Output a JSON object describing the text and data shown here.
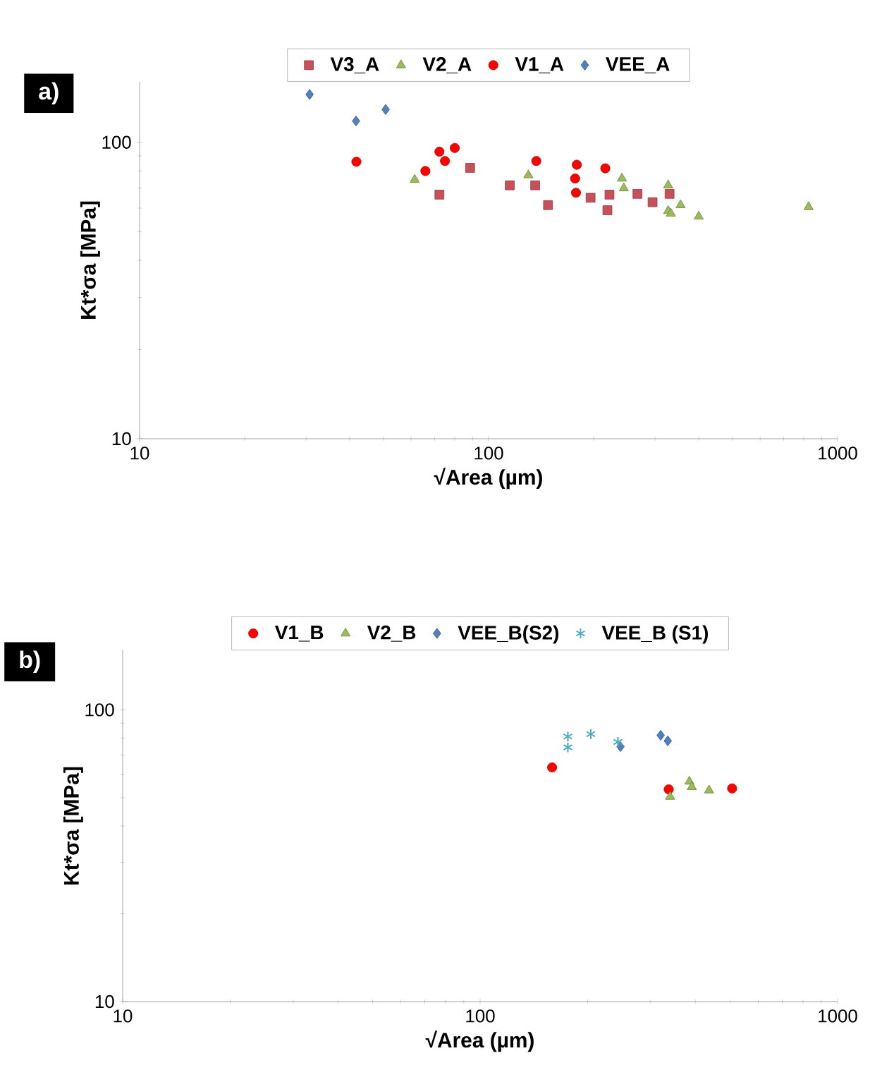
{
  "chart_data": [
    {
      "type": "scatter",
      "title": "a)",
      "xlabel": "√Area (µm)",
      "ylabel": "Kt*σa [MPa]",
      "log": "xy",
      "xlim": [
        10,
        1000
      ],
      "ylim": [
        10,
        160
      ],
      "xticks": [
        10,
        100,
        1000
      ],
      "yticks": [
        10,
        100
      ],
      "legend": "top",
      "grid": false,
      "series": [
        {
          "name": "V3_A",
          "color": "#c8505a",
          "marker": "square",
          "x": [
            72.3,
            88.5,
            115,
            136,
            148,
            196,
            219,
            222,
            267,
            295,
            330
          ],
          "values": [
            66.6,
            82,
            71.6,
            71.6,
            61.4,
            65,
            59,
            66.6,
            67,
            62.8,
            67
          ]
        },
        {
          "name": "V2_A",
          "color": "#9bbb59",
          "marker": "triangle",
          "x": [
            61.4,
            130,
            241,
            244,
            327,
            327,
            333,
            355,
            400,
            826
          ],
          "values": [
            74.8,
            77.5,
            75.5,
            70,
            71.6,
            58.7,
            57.5,
            61.4,
            56.2,
            60.5
          ]
        },
        {
          "name": "V1_A",
          "color": "#ff0000",
          "marker": "circle",
          "x": [
            41.8,
            65.9,
            72.3,
            75,
            80,
            137,
            179,
            177,
            178,
            216
          ],
          "values": [
            86,
            80,
            93,
            86.5,
            95.7,
            86.5,
            84,
            75.5,
            67.6,
            81.7
          ]
        },
        {
          "name": "VEE_A",
          "color": "#4f81bd",
          "marker": "diamond",
          "x": [
            30.7,
            41.7,
            50.7
          ],
          "values": [
            145,
            118,
            129
          ]
        }
      ]
    },
    {
      "type": "scatter",
      "title": "b)",
      "xlabel": "√Area (µm)",
      "ylabel": "Kt*σa [MPa]",
      "log": "xy",
      "xlim": [
        10,
        1000
      ],
      "ylim": [
        10,
        160
      ],
      "xticks": [
        10,
        100,
        1000
      ],
      "yticks": [
        10,
        100
      ],
      "legend": "top",
      "grid": false,
      "series": [
        {
          "name": "V1_B",
          "color": "#ff0000",
          "marker": "circle",
          "x": [
            159,
            337,
            507
          ],
          "values": [
            63.5,
            53.4,
            53.8
          ]
        },
        {
          "name": "V2_B",
          "color": "#9bbb59",
          "marker": "triangle",
          "x": [
            340,
            385,
            391,
            437
          ],
          "values": [
            50.4,
            56.8,
            54.4,
            53
          ]
        },
        {
          "name": "VEE_B(S2)",
          "color": "#4f81bd",
          "marker": "diamond",
          "x": [
            320,
            335,
            247
          ],
          "values": [
            81.8,
            78.3,
            74.8
          ]
        },
        {
          "name": "VEE_B (S1)",
          "color": "#4bacc6",
          "marker": "cross",
          "x": [
            176,
            176,
            204,
            243
          ],
          "values": [
            81,
            74.4,
            82.6,
            77.6
          ]
        }
      ]
    }
  ]
}
